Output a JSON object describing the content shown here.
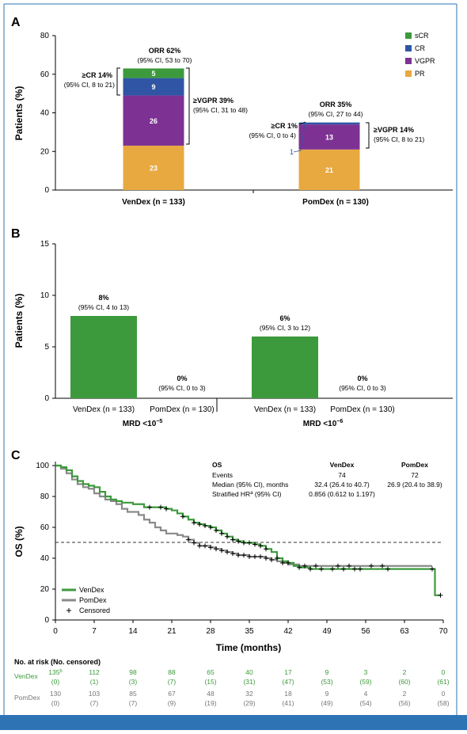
{
  "colors": {
    "sCR": "#3c9a3c",
    "CR": "#2f55a4",
    "VGPR": "#7d3293",
    "PR": "#e8a940",
    "green": "#3c9a3c",
    "gray": "#8a8a8a",
    "frame": "#2e74b5"
  },
  "panel_a": {
    "letter": "A",
    "ylabel": "Patients (%)",
    "legend": [
      "sCR",
      "CR",
      "VGPR",
      "PR"
    ],
    "venDex": {
      "group_label": "VenDex (n = 133)",
      "orr": "ORR 62%",
      "orr_ci": "(95% CI, 53 to 70)",
      "cr_label": "≥CR 14%",
      "cr_ci": "(95% CI, 8 to 21)",
      "vgpr_label": "≥VGPR 39%",
      "vgpr_ci": "(95% CI, 31 to 48)"
    },
    "pomDex": {
      "group_label": "PomDex (n = 130)",
      "orr": "ORR 35%",
      "orr_ci": "(95% CI, 27 to 44)",
      "cr_label": "≥CR 1%",
      "cr_ci": "(95% CI, 0 to 4)",
      "vgpr_label": "≥VGPR 14%",
      "vgpr_ci": "(95% CI, 8 to 21)",
      "cr_value_label": "1"
    }
  },
  "panel_b": {
    "letter": "B",
    "ylabel": "Patients (%)",
    "bars": [
      {
        "pct": "8%",
        "ci": "(95% CI, 4 to 13)"
      },
      {
        "pct": "0%",
        "ci": "(95% CI, 0 to 3)"
      },
      {
        "pct": "6%",
        "ci": "(95% CI, 3 to 12)"
      },
      {
        "pct": "0%",
        "ci": "(95% CI, 0 to 3)"
      }
    ],
    "bar_labels": [
      "VenDex (n = 133)",
      "PomDex (n = 130)",
      "VenDex (n = 133)",
      "PomDex (n = 130)"
    ],
    "group_labels": [
      "MRD <10",
      "MRD <10"
    ],
    "group_exponents": [
      "−5",
      "−6"
    ]
  },
  "panel_c": {
    "letter": "C",
    "ylabel": "OS (%)",
    "xlabel": "Time (months)",
    "legend": [
      "VenDex",
      "PomDex",
      "Censored"
    ],
    "stats": {
      "header": [
        "OS",
        "VenDex",
        "PomDex"
      ],
      "rows": [
        {
          "label": "Events",
          "ven": "74",
          "pom": "72"
        },
        {
          "label": "Median (95% CI), months",
          "ven": "32.4 (26.4 to 40.7)",
          "pom": "26.9 (20.4 to 38.9)"
        },
        {
          "label": "Stratified HR",
          "sup": "a",
          "label_tail": " (95% CI)",
          "ven": "0.856 (0.612 to 1.197)",
          "pom": ""
        }
      ]
    },
    "risk_title": "No. at risk (No. censored)",
    "risk_rows": [
      {
        "name": "VenDex",
        "first_sup": "b",
        "counts": [
          "135",
          "112",
          "98",
          "88",
          "65",
          "40",
          "17",
          "9",
          "3",
          "2",
          "0"
        ],
        "censored": [
          "(0)",
          "(1)",
          "(3)",
          "(7)",
          "(15)",
          "(31)",
          "(47)",
          "(53)",
          "(59)",
          "(60)",
          "(61)"
        ]
      },
      {
        "name": "PomDex",
        "first_sup": "",
        "counts": [
          "130",
          "103",
          "85",
          "67",
          "48",
          "32",
          "18",
          "9",
          "4",
          "2",
          "0"
        ],
        "censored": [
          "(0)",
          "(7)",
          "(7)",
          "(9)",
          "(19)",
          "(29)",
          "(41)",
          "(49)",
          "(54)",
          "(56)",
          "(58)"
        ]
      }
    ]
  },
  "chart_data": [
    {
      "type": "bar",
      "stacked": true,
      "categories": [
        "VenDex (n = 133)",
        "PomDex (n = 130)"
      ],
      "series": [
        {
          "name": "PR",
          "values": [
            23,
            21
          ]
        },
        {
          "name": "VGPR",
          "values": [
            26,
            13
          ]
        },
        {
          "name": "CR",
          "values": [
            9,
            1
          ]
        },
        {
          "name": "sCR",
          "values": [
            5,
            0
          ]
        }
      ],
      "ylabel": "Patients (%)",
      "ylim": [
        0,
        80
      ],
      "yticks": [
        0,
        20,
        40,
        60,
        80
      ],
      "legend_position": "top-right"
    },
    {
      "type": "bar",
      "categories": [
        "VenDex (n = 133)",
        "PomDex (n = 130)",
        "VenDex (n = 133)",
        "PomDex (n = 130)"
      ],
      "groups": [
        "MRD <10−5",
        "MRD <10−6"
      ],
      "values": [
        8,
        0,
        6,
        0
      ],
      "ylabel": "Patients (%)",
      "ylim": [
        0,
        15
      ],
      "yticks": [
        0,
        5,
        10,
        15
      ]
    },
    {
      "type": "line",
      "step": true,
      "xlabel": "Time (months)",
      "ylabel": "OS (%)",
      "xlim": [
        0,
        70
      ],
      "ylim": [
        0,
        100
      ],
      "xticks": [
        0,
        7,
        14,
        21,
        28,
        35,
        42,
        49,
        56,
        63,
        70
      ],
      "yticks": [
        0,
        20,
        40,
        60,
        80,
        100
      ],
      "reference_line_y": 50,
      "legend_position": "bottom-left",
      "series": [
        {
          "name": "VenDex",
          "x": [
            0,
            1,
            2,
            3,
            4,
            5,
            6,
            7,
            8,
            9,
            10,
            11,
            12,
            14,
            16,
            18,
            19,
            20,
            21,
            22,
            23,
            24,
            25,
            26,
            27,
            28,
            29,
            30,
            31,
            32,
            33,
            34,
            35,
            36,
            37,
            38,
            39,
            40,
            41,
            42,
            43,
            44,
            46,
            50,
            60,
            68,
            68.5
          ],
          "y": [
            100,
            99,
            97,
            93,
            90,
            88,
            87,
            86,
            83,
            80,
            78,
            77,
            76,
            75,
            73,
            73,
            73,
            72,
            71,
            69,
            67,
            65,
            63,
            62,
            61,
            60,
            58,
            56,
            54,
            52,
            51,
            50,
            50,
            49,
            48,
            46,
            44,
            40,
            38,
            37,
            35,
            34,
            33,
            33,
            33,
            33,
            16
          ],
          "censored_x": [
            17,
            19,
            20,
            23,
            25,
            26,
            27,
            28,
            29,
            30,
            31,
            32,
            33,
            34,
            35,
            36,
            37,
            38,
            40,
            42,
            44,
            46,
            48,
            50,
            52,
            54,
            55,
            60,
            68,
            69.5
          ]
        },
        {
          "name": "PomDex",
          "x": [
            0,
            1,
            2,
            3,
            4,
            5,
            6,
            7,
            8,
            9,
            10,
            11,
            12,
            13,
            14,
            15,
            16,
            17,
            18,
            19,
            20,
            21,
            22,
            23,
            24,
            25,
            26,
            27,
            28,
            29,
            30,
            31,
            32,
            33,
            34,
            35,
            36,
            37,
            38,
            39,
            40,
            41,
            42,
            44,
            46,
            50,
            60,
            68
          ],
          "y": [
            100,
            98,
            95,
            91,
            88,
            86,
            85,
            82,
            80,
            78,
            77,
            75,
            72,
            70,
            70,
            68,
            65,
            63,
            60,
            58,
            56,
            56,
            55,
            54,
            52,
            50,
            48,
            48,
            47,
            46,
            45,
            44,
            43,
            42,
            42,
            41,
            41,
            41,
            40,
            39,
            38,
            37,
            36,
            35,
            35,
            35,
            35,
            35
          ],
          "censored_x": [
            24,
            25,
            26,
            27,
            28,
            29,
            30,
            31,
            32,
            33,
            34,
            35,
            36,
            37,
            38,
            39,
            41,
            45,
            47,
            51,
            53,
            57,
            59
          ]
        }
      ]
    }
  ]
}
